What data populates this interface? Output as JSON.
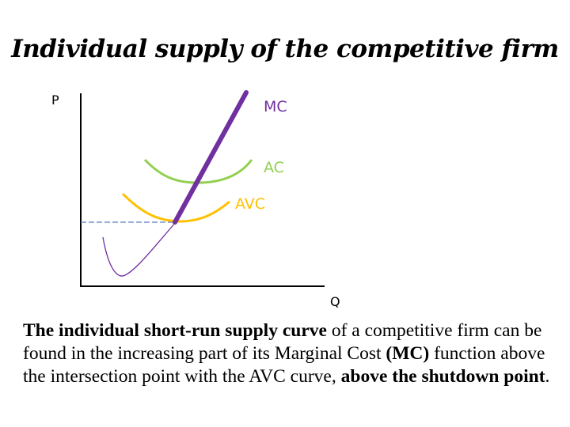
{
  "title": "Individual supply of the competitive firm",
  "diagram": {
    "axis_y_label": "P",
    "axis_x_label": "Q",
    "curves": [
      {
        "name": "MC",
        "label": "MC",
        "color": "#7030a0"
      },
      {
        "name": "AC",
        "label": "AC",
        "color": "#92d050"
      },
      {
        "name": "AVC",
        "label": "AVC",
        "color": "#ffc000"
      }
    ],
    "shutdown_line_color": "#5b7fbf"
  },
  "caption": {
    "part1": "The individual short-run supply curve",
    "part2": " of a competitive firm can be found in the increasing part of its Marginal Cost ",
    "part3": "(MC)",
    "part4": " function above the intersection point with the AVC curve, ",
    "part5": "above the shutdown point",
    "part6": "."
  }
}
